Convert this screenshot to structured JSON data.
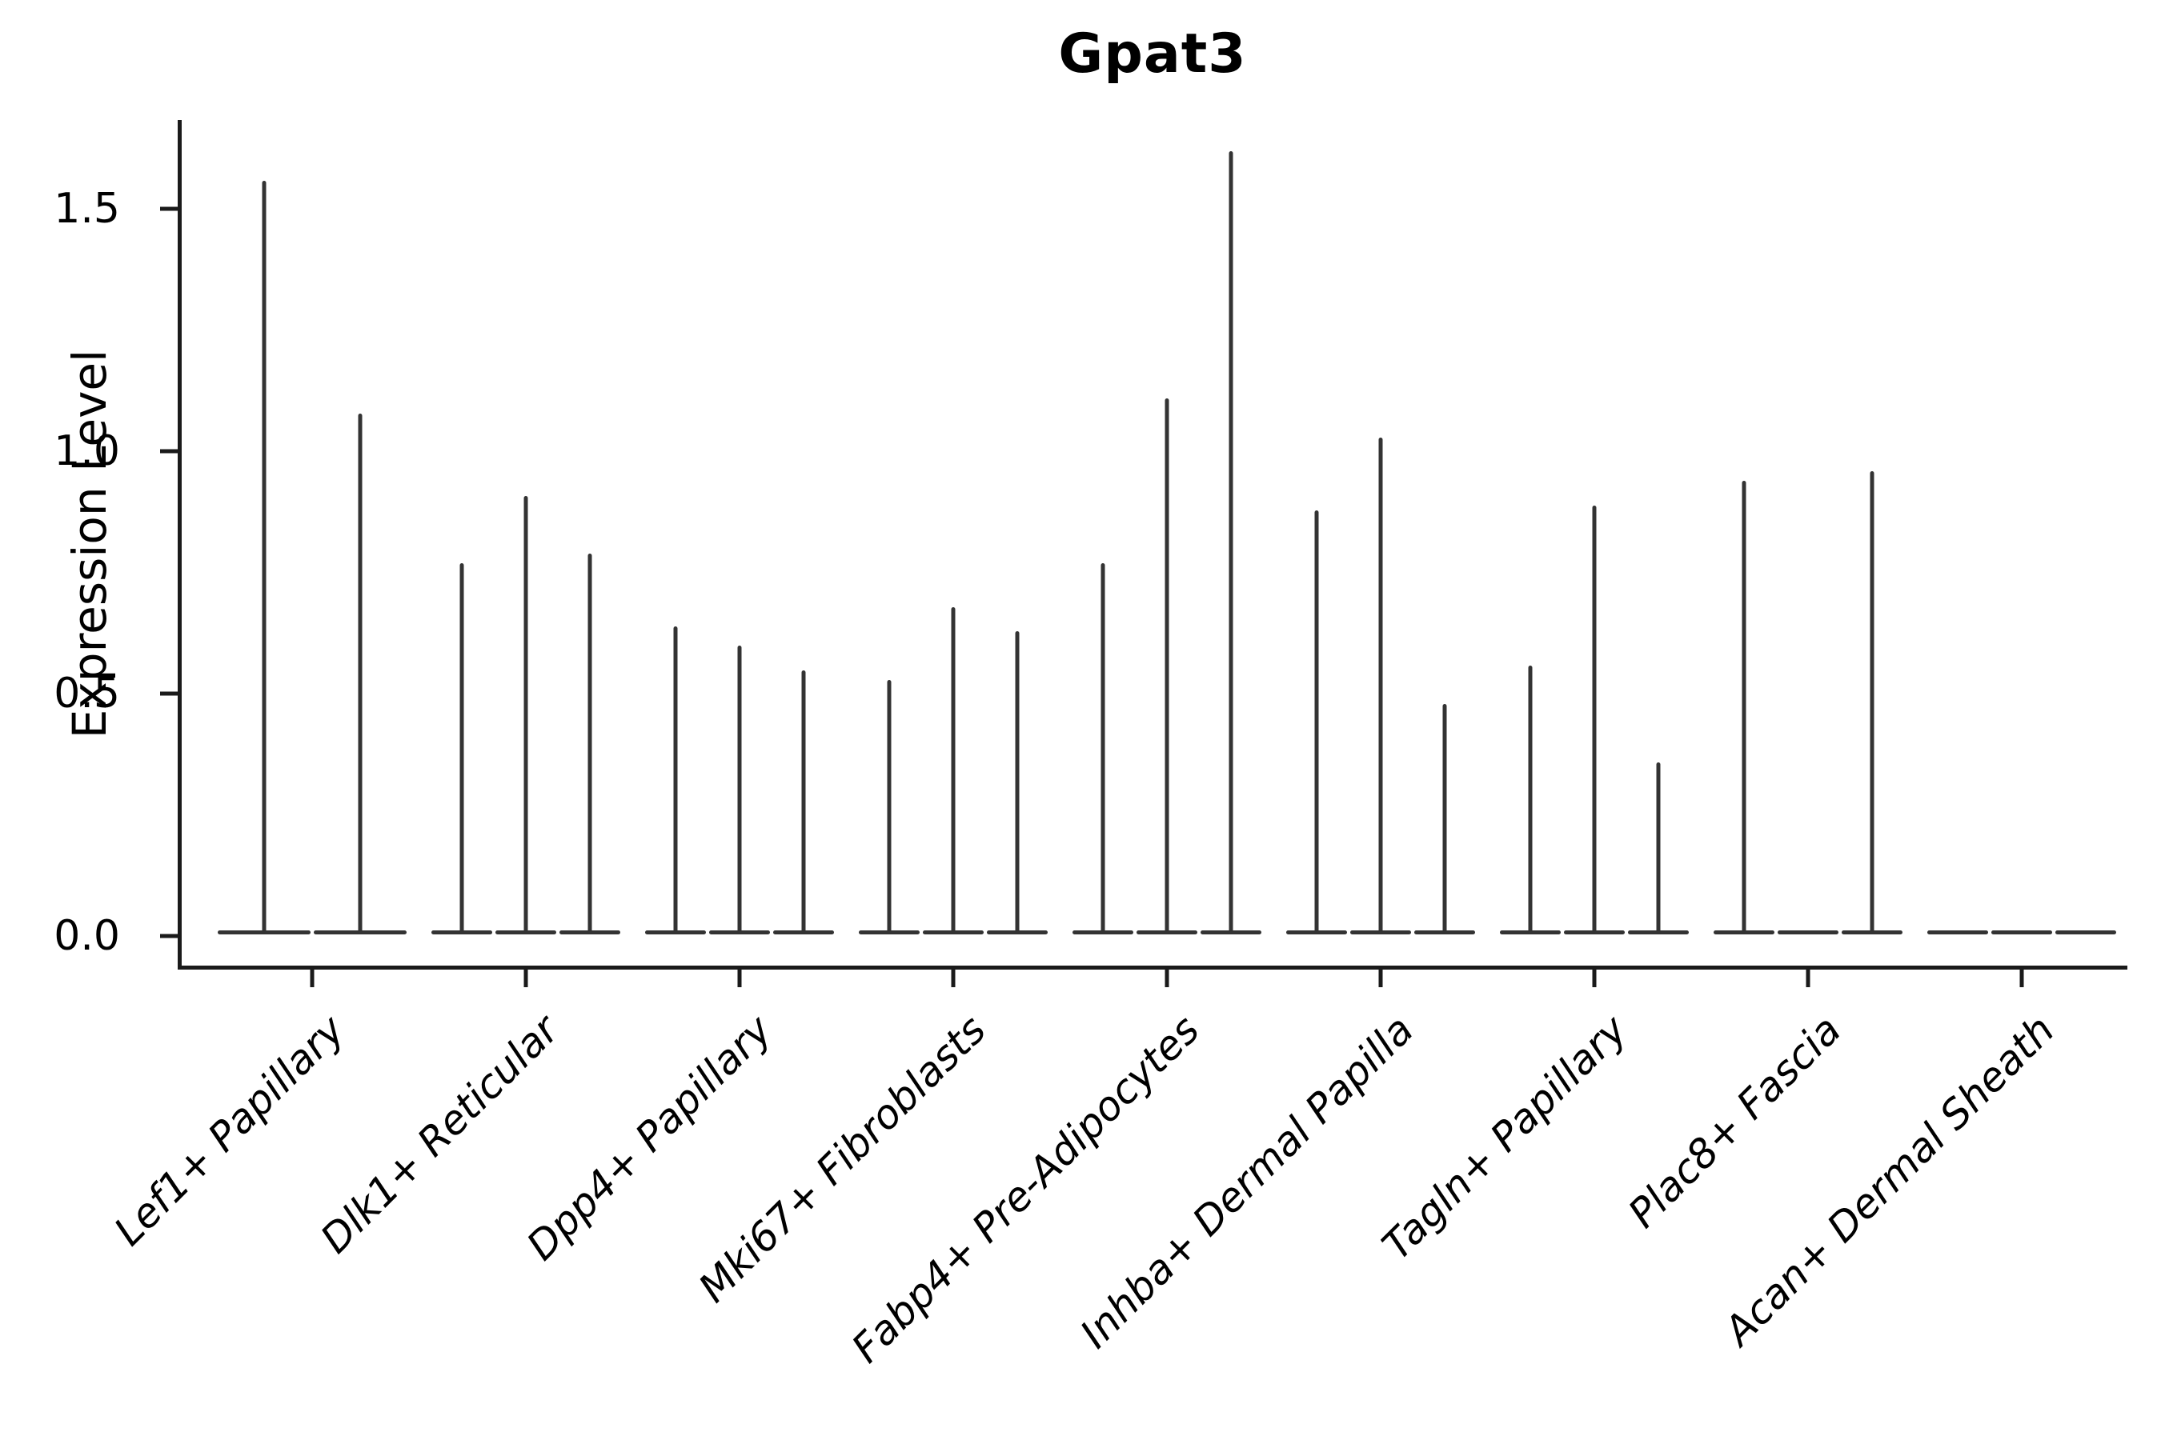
{
  "chart_data": {
    "type": "violin",
    "title": "Gpat3",
    "xlabel": "",
    "ylabel": "Expression Level",
    "y_axis": {
      "tick_labels": [
        "0.0",
        "0.5",
        "1.0",
        "1.5"
      ],
      "tick_values": [
        0.0,
        0.5,
        1.0,
        1.5
      ],
      "ylim": [
        -0.07,
        1.68
      ]
    },
    "legend": "none",
    "grid": false,
    "categories": [
      "Lef1+ Papillary",
      "Dlk1+ Reticular",
      "Dpp4+ Papillary",
      "Mki67+ Fibroblasts",
      "Fabp4+ Pre-Adipocytes",
      "Inhba+ Dermal Papilla",
      "Tagln+ Papillary",
      "Plac8+ Fascia",
      "Acan+ Dermal Sheath"
    ],
    "series": [
      {
        "name": "Lef1+ Papillary",
        "violin_max_values": [
          1.55,
          1.07
        ]
      },
      {
        "name": "Dlk1+ Reticular",
        "violin_max_values": [
          0.76,
          0.9,
          0.78
        ]
      },
      {
        "name": "Dpp4+ Papillary",
        "violin_max_values": [
          0.63,
          0.59,
          0.54
        ]
      },
      {
        "name": "Mki67+ Fibroblasts",
        "violin_max_values": [
          0.52,
          0.67,
          0.62
        ]
      },
      {
        "name": "Fabp4+ Pre-Adipocytes",
        "violin_max_values": [
          0.76,
          1.1,
          1.61
        ]
      },
      {
        "name": "Inhba+ Dermal Papilla",
        "violin_max_values": [
          0.87,
          1.02,
          0.47
        ]
      },
      {
        "name": "Tagln+ Papillary",
        "violin_max_values": [
          0.55,
          0.88,
          0.35
        ]
      },
      {
        "name": "Plac8+ Fascia",
        "violin_max_values": [
          0.93,
          0.0,
          0.95
        ]
      },
      {
        "name": "Acan+ Dermal Sheath",
        "violin_max_values": [
          0.0,
          0.0,
          0.0
        ]
      }
    ],
    "description": "Distributions are collapsed at 0 (flat baselines) with thin density spikes up to each max value.",
    "colors": {
      "violin_stroke": "#333333",
      "axis": "#1a1a1a",
      "text": "#000000",
      "background": "#ffffff"
    }
  }
}
